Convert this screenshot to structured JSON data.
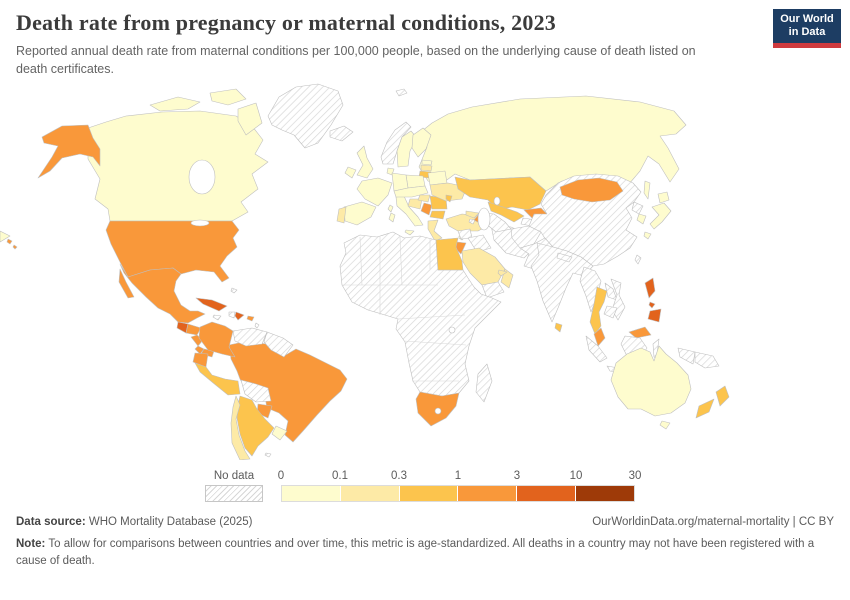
{
  "header": {
    "title": "Death rate from pregnancy or maternal conditions, 2023",
    "subtitle": "Reported annual death rate from maternal conditions per 100,000 people, based on the underlying cause of death listed on death certificates."
  },
  "logo": {
    "line1": "Our World",
    "line2": "in Data",
    "bg": "#1d3d63",
    "bar": "#cf3a3e"
  },
  "legend": {
    "no_data_label": "No data"
  },
  "footer": {
    "data_source_label": "Data source:",
    "data_source_value": " WHO Mortality Database (2025)",
    "link": "OurWorldinData.org/maternal-mortality | CC BY",
    "note_label": "Note:",
    "note_text": " To allow for comparisons between countries and over time, this metric is age-standardized. All deaths in a country may not have been registered with a cause of death."
  },
  "chart_data": {
    "type": "heatmap",
    "subtype": "choropleth_world_map",
    "title": "Death rate from pregnancy or maternal conditions, 2023",
    "unit": "deaths per 100,000 people",
    "year": "2023",
    "scale_ticks": [
      "0",
      "0.1",
      "0.3",
      "1",
      "3",
      "10",
      "30"
    ],
    "bin_ranges": [
      "0-0.1",
      "0.1-0.3",
      "0.3-1",
      "1-3",
      "3-10",
      "10-30"
    ],
    "bin_colors": [
      "#fefcce",
      "#fdeaa6",
      "#fcc44d",
      "#f9983a",
      "#e2631d",
      "#9e3a08"
    ],
    "no_data_pattern": "gray-diagonal-hatch",
    "legend_position": "bottom",
    "countries": {
      "canada": 1,
      "greenland": 0,
      "united-states": 4,
      "mexico": 4,
      "guatemala": 5,
      "honduras": 4,
      "nicaragua": 4,
      "costa-rica": 4,
      "panama": 4,
      "cuba": 5,
      "jamaica": 0,
      "haiti": 0,
      "dominican-republic": 5,
      "puerto-rico": 4,
      "bahamas": 0,
      "lesser-antilles": 0,
      "trinidad": 0,
      "colombia": 4,
      "venezuela": 0,
      "guyanas": 0,
      "ecuador": 4,
      "peru": 3,
      "brazil": 4,
      "bolivia": 0,
      "paraguay": 4,
      "uruguay": 1,
      "argentina": 3,
      "chile": 2,
      "falkland": 0,
      "iceland": 0,
      "united-kingdom": 1,
      "ireland": 1,
      "norway": 0,
      "sweden": 1,
      "finland": 1,
      "denmark": 1,
      "estonia": 1,
      "latvia": 2,
      "lithuania": 3,
      "poland": 1,
      "germany": 1,
      "france": 1,
      "spain": 1,
      "portugal": 2,
      "italy": 1,
      "central-europe": 1,
      "croatia-bosnia": 2,
      "hungary": 2,
      "serbia": 4,
      "romania": 3,
      "bulgaria": 3,
      "greece": 2,
      "belarus": 1,
      "ukraine": 2,
      "moldova": 3,
      "russia": 1,
      "svalbard": 0,
      "turkey": 2,
      "cyprus": 1,
      "georgia": 2,
      "armenia": 0,
      "azerbaijan": 4,
      "syria": 0,
      "iraq": 0,
      "iran": 0,
      "israel": 3,
      "jordan": 4,
      "saudi-arabia": 2,
      "yemen": 0,
      "oman": 2,
      "uae": 2,
      "egypt": 3,
      "africa": 0,
      "south-africa": 4,
      "madagascar": 0,
      "kazakhstan": 3,
      "uzbekistan": 3,
      "turkmenistan": 0,
      "kyrgyzstan": 4,
      "tajikistan": 0,
      "afghanistan": 0,
      "pakistan": 0,
      "india": 0,
      "sri-lanka": 3,
      "nepal": 0,
      "china": 0,
      "mongolia": 4,
      "north-korea": 0,
      "south-korea": 1,
      "japan": 1,
      "taiwan": 0,
      "myanmar": 0,
      "thailand": 3,
      "laos": 0,
      "vietnam": 0,
      "cambodia": 0,
      "malaysia": 4,
      "indonesia": 0,
      "papua-new-guinea": 0,
      "philippines": 5,
      "australia": 1,
      "new-zealand": 3
    }
  }
}
